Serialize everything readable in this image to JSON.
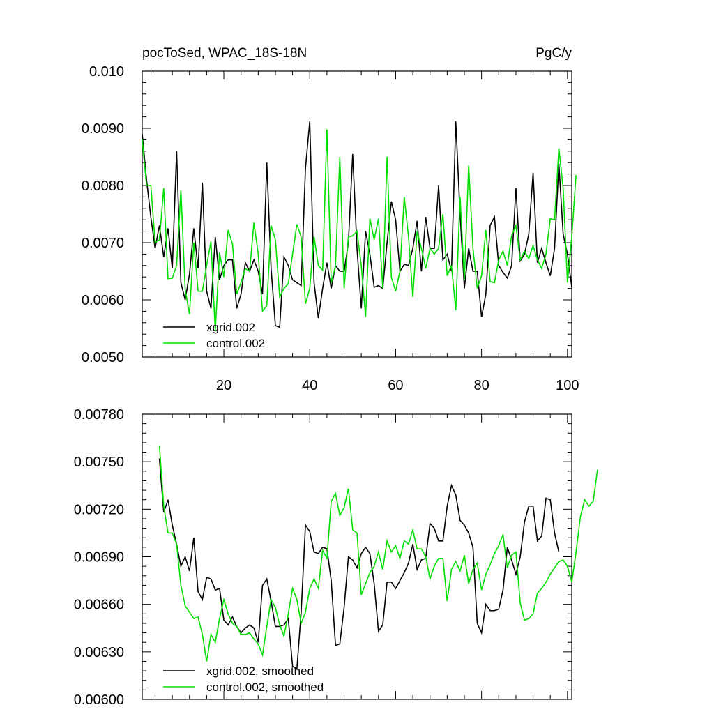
{
  "chart_data": [
    {
      "type": "line",
      "title_left": "pocToSed, WPAC_18S-18N",
      "title_right": "PgC/y",
      "xlim": [
        1,
        101
      ],
      "ylim": [
        0.005,
        0.01
      ],
      "x_ticks": [
        20,
        40,
        60,
        80,
        100
      ],
      "x_tick_labels": [
        "20",
        "40",
        "60",
        "80",
        "100"
      ],
      "y_ticks": [
        0.005,
        0.006,
        0.007,
        0.008,
        0.009,
        0.01
      ],
      "y_tick_labels": [
        "0.0050",
        "0.0060",
        "0.0070",
        "0.0080",
        "0.0090",
        "0.010"
      ],
      "legend": [
        "xgrid.002",
        "control.002"
      ],
      "series": [
        {
          "name": "xgrid.002",
          "color": "#000000",
          "x_start": 1,
          "values": [
            0.0089,
            0.0081,
            0.00745,
            0.0069,
            0.0073,
            0.00675,
            0.00725,
            0.00655,
            0.0086,
            0.0063,
            0.006,
            0.00645,
            0.00725,
            0.00655,
            0.00805,
            0.00615,
            0.00585,
            0.0071,
            0.00635,
            0.0066,
            0.0067,
            0.0067,
            0.00585,
            0.0061,
            0.00665,
            0.0065,
            0.0067,
            0.0065,
            0.0061,
            0.0084,
            0.00655,
            0.00555,
            0.00552,
            0.00675,
            0.0066,
            0.00635,
            0.0063,
            0.00625,
            0.0083,
            0.00912,
            0.0063,
            0.00568,
            0.0062,
            0.00665,
            0.0062,
            0.0066,
            0.0065,
            0.0065,
            0.007,
            0.00855,
            0.0069,
            0.00585,
            0.0072,
            0.0068,
            0.00622,
            0.00625,
            0.0062,
            0.007,
            0.00772,
            0.0074,
            0.0065,
            0.00662,
            0.0066,
            0.0069,
            0.00738,
            0.0065,
            0.00745,
            0.0069,
            0.0069,
            0.008,
            0.0067,
            0.0068,
            0.0065,
            0.00912,
            0.0075,
            0.0062,
            0.0069,
            0.0065,
            0.0065,
            0.0057,
            0.0061,
            0.0073,
            0.00745,
            0.0066,
            0.00648,
            0.00638,
            0.0066,
            0.00795,
            0.00668,
            0.0068,
            0.00715,
            0.00822,
            0.00665,
            0.0069,
            0.00665,
            0.00642,
            0.0069,
            0.00838,
            0.00715,
            0.0068,
            0.00622
          ]
        },
        {
          "name": "control.002",
          "color": "#00e000",
          "x_start": 1,
          "values": [
            0.0088,
            0.008,
            0.008,
            0.007,
            0.00705,
            0.00795,
            0.00637,
            0.00638,
            0.0066,
            0.00792,
            0.00618,
            0.00575,
            0.007,
            0.00615,
            0.00615,
            0.0066,
            0.00702,
            0.00545,
            0.00683,
            0.0064,
            0.00722,
            0.00698,
            0.0061,
            0.0063,
            0.00655,
            0.0065,
            0.00735,
            0.0068,
            0.0058,
            0.0059,
            0.0073,
            0.00705,
            0.00605,
            0.0062,
            0.00628,
            0.0068,
            0.00732,
            0.0071,
            0.00593,
            0.0062,
            0.0071,
            0.0066,
            0.00652,
            0.00898,
            0.0063,
            0.0066,
            0.0085,
            0.0062,
            0.0071,
            0.00712,
            0.0072,
            0.0066,
            0.0057,
            0.00742,
            0.00705,
            0.00742,
            0.0062,
            0.0085,
            0.0064,
            0.00615,
            0.0065,
            0.0078,
            0.0071,
            0.00605,
            0.0072,
            0.0069,
            0.00655,
            0.0069,
            0.0068,
            0.0069,
            0.0075,
            0.00642,
            0.0066,
            0.00582,
            0.0078,
            0.00635,
            0.00835,
            0.0069,
            0.0062,
            0.00642,
            0.00722,
            0.00632,
            0.0063,
            0.0067,
            0.00685,
            0.0066,
            0.00712,
            0.0073,
            0.0067,
            0.00685,
            0.00672,
            0.00695,
            0.0067,
            0.00655,
            0.0068,
            0.00742,
            0.0074,
            0.00865,
            0.00795,
            0.0063,
            0.0071,
            0.00818
          ]
        }
      ]
    },
    {
      "type": "line",
      "xlim": [
        1,
        101
      ],
      "ylim": [
        0.006,
        0.0078
      ],
      "x_ticks": [
        20,
        40,
        60,
        80,
        100
      ],
      "y_ticks": [
        0.006,
        0.0063,
        0.0066,
        0.0069,
        0.0072,
        0.0075,
        0.0078
      ],
      "y_tick_labels": [
        "0.00600",
        "0.00630",
        "0.00660",
        "0.00690",
        "0.00720",
        "0.00750",
        "0.00780"
      ],
      "legend": [
        "xgrid.002, smoothed",
        "control.002, smoothed"
      ],
      "series": [
        {
          "name": "xgrid.002, smoothed",
          "color": "#000000",
          "x_start": 5,
          "values": [
            0.00752,
            0.00718,
            0.00726,
            0.0071,
            0.00698,
            0.00684,
            0.0069,
            0.00681,
            0.00702,
            0.00668,
            0.00663,
            0.00677,
            0.00676,
            0.00669,
            0.0067,
            0.0065,
            0.00647,
            0.00652,
            0.00646,
            0.00642,
            0.00645,
            0.00647,
            0.00645,
            0.00636,
            0.00672,
            0.00676,
            0.00662,
            0.00646,
            0.00646,
            0.00647,
            0.00651,
            0.00621,
            0.00619,
            0.00655,
            0.0071,
            0.00706,
            0.00693,
            0.00692,
            0.00696,
            0.00695,
            0.00675,
            0.00634,
            0.00635,
            0.00658,
            0.0069,
            0.00688,
            0.00683,
            0.00692,
            0.00696,
            0.00692,
            0.00673,
            0.00643,
            0.00647,
            0.00674,
            0.00674,
            0.0067,
            0.00675,
            0.0068,
            0.00686,
            0.00698,
            0.00682,
            0.00688,
            0.00689,
            0.00711,
            0.00708,
            0.007,
            0.007,
            0.00722,
            0.00735,
            0.00729,
            0.00713,
            0.0071,
            0.00705,
            0.00696,
            0.00648,
            0.00642,
            0.0066,
            0.00656,
            0.00656,
            0.00657,
            0.00669,
            0.00696,
            0.00688,
            0.00679,
            0.0069,
            0.00712,
            0.00722,
            0.00722,
            0.007,
            0.00703,
            0.00727,
            0.00726,
            0.00705,
            0.00693
          ]
        },
        {
          "name": "control.002, smoothed",
          "color": "#00e000",
          "x_start": 5,
          "values": [
            0.0076,
            0.00722,
            0.00705,
            0.00705,
            0.00698,
            0.00672,
            0.00659,
            0.00655,
            0.00651,
            0.00652,
            0.00641,
            0.00624,
            0.00641,
            0.00636,
            0.00651,
            0.00663,
            0.00654,
            0.00648,
            0.00646,
            0.00641,
            0.00641,
            0.00642,
            0.00638,
            0.00635,
            0.00628,
            0.00646,
            0.00663,
            0.00658,
            0.00647,
            0.0064,
            0.00654,
            0.0067,
            0.00663,
            0.00648,
            0.00655,
            0.0067,
            0.00676,
            0.0067,
            0.00694,
            0.00689,
            0.00725,
            0.0073,
            0.00716,
            0.00721,
            0.00733,
            0.00707,
            0.00705,
            0.00666,
            0.00673,
            0.0068,
            0.00684,
            0.00693,
            0.00682,
            0.007,
            0.00693,
            0.00697,
            0.00689,
            0.007,
            0.00698,
            0.00707,
            0.00695,
            0.00695,
            0.0069,
            0.00676,
            0.00684,
            0.00689,
            0.00689,
            0.00662,
            0.00682,
            0.00687,
            0.00681,
            0.00691,
            0.00673,
            0.00682,
            0.00686,
            0.00669,
            0.00679,
            0.00685,
            0.00692,
            0.00697,
            0.00704,
            0.00683,
            0.00691,
            0.00693,
            0.00661,
            0.0065,
            0.00651,
            0.00654,
            0.00667,
            0.0067,
            0.00674,
            0.00679,
            0.00683,
            0.00687,
            0.00688,
            0.00684,
            0.00674,
            0.00693,
            0.00715,
            0.00726,
            0.00722,
            0.00725,
            0.00745
          ]
        }
      ]
    }
  ]
}
